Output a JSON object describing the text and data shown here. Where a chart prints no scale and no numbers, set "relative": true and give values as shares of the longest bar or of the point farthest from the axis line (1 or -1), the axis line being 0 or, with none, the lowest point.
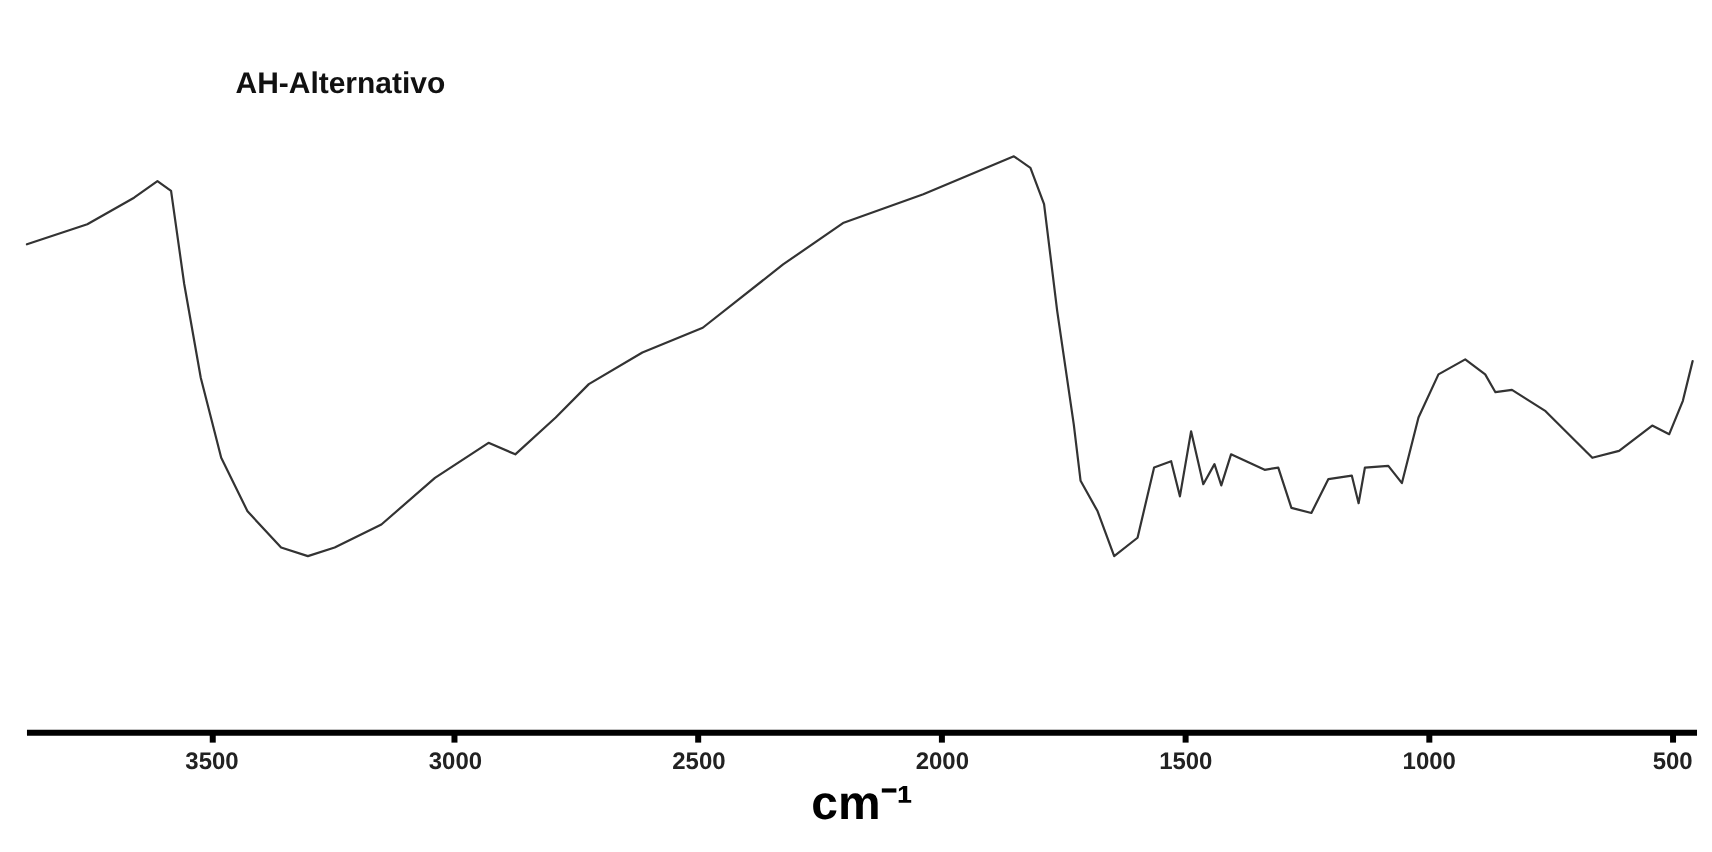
{
  "chart_data": {
    "type": "line",
    "title": "AH-Alternativo",
    "xlabel": "cm⁻¹",
    "relative": true,
    "xlim": [
      3880,
      450
    ],
    "xticks": [
      3500,
      3000,
      2500,
      2000,
      1500,
      1000,
      500
    ],
    "grid": false,
    "marker": "none",
    "line_style": "solid",
    "series": [
      {
        "color": "#333333",
        "x": [
          3878,
          3754,
          3658,
          3610,
          3582,
          3555,
          3521,
          3479,
          3425,
          3356,
          3301,
          3246,
          3150,
          3040,
          2930,
          2875,
          2792,
          2724,
          2614,
          2490,
          2325,
          2202,
          2037,
          1851,
          1817,
          1789,
          1762,
          1728,
          1714,
          1679,
          1645,
          1597,
          1563,
          1528,
          1510,
          1487,
          1462,
          1439,
          1425,
          1405,
          1336,
          1308,
          1281,
          1240,
          1205,
          1157,
          1143,
          1130,
          1082,
          1054,
          1020,
          979,
          924,
          883,
          862,
          828,
          759,
          663,
          608,
          540,
          505,
          477,
          457
        ],
        "values": [
          0.847,
          0.882,
          0.928,
          0.957,
          0.94,
          0.778,
          0.615,
          0.476,
          0.383,
          0.32,
          0.305,
          0.32,
          0.36,
          0.441,
          0.502,
          0.482,
          0.546,
          0.604,
          0.659,
          0.702,
          0.812,
          0.884,
          0.934,
          1.0,
          0.98,
          0.917,
          0.731,
          0.534,
          0.436,
          0.383,
          0.305,
          0.337,
          0.459,
          0.47,
          0.409,
          0.522,
          0.43,
          0.465,
          0.428,
          0.482,
          0.455,
          0.459,
          0.389,
          0.38,
          0.439,
          0.445,
          0.397,
          0.459,
          0.462,
          0.432,
          0.546,
          0.621,
          0.647,
          0.621,
          0.59,
          0.594,
          0.557,
          0.476,
          0.488,
          0.532,
          0.517,
          0.575,
          0.644
        ]
      }
    ]
  }
}
